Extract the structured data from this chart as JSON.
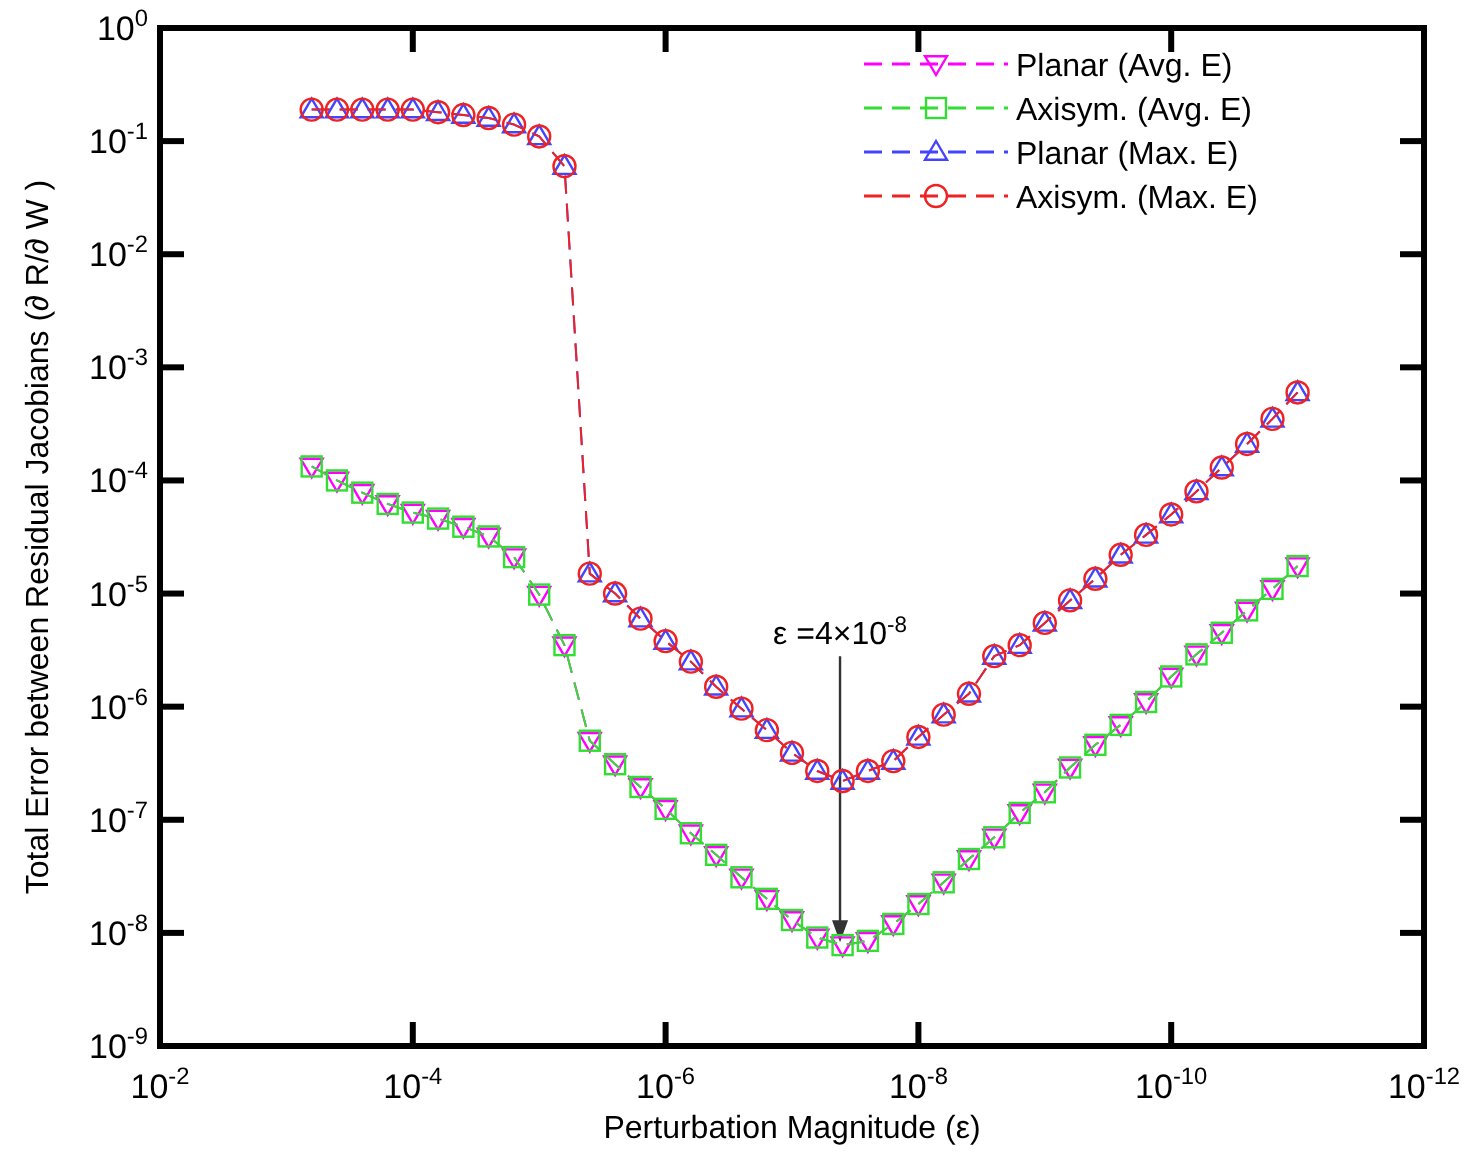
{
  "chart_data": {
    "type": "line",
    "xlabel": "Perturbation Magnitude (ε)",
    "ylabel": "Total Error between Residual Jacobians (∂ R/∂ W )",
    "log": "xy",
    "xlim": [
      0.01,
      1e-12
    ],
    "xticks": [
      {
        "value": 0.01,
        "label": "10$^{-2}$"
      },
      {
        "value": 0.0001,
        "label": "10$^{-4}$"
      },
      {
        "value": 1e-06,
        "label": "10$^{-6}$"
      },
      {
        "value": 1e-08,
        "label": "10$^{-8}$"
      },
      {
        "value": 1e-10,
        "label": "10$^{-10}$"
      },
      {
        "value": 1e-12,
        "label": "10$^{-12}$"
      }
    ],
    "ylim": [
      1e-09,
      1
    ],
    "yticks": [
      {
        "value": 1e-09,
        "label": "10$^{-9}$"
      },
      {
        "value": 1e-08,
        "label": "10$^{-8}$"
      },
      {
        "value": 1e-07,
        "label": "10$^{-7}$"
      },
      {
        "value": 1e-06,
        "label": "10$^{-6}$"
      },
      {
        "value": 1e-05,
        "label": "10$^{-5}$"
      },
      {
        "value": 0.0001,
        "label": "10$^{-4}$"
      },
      {
        "value": 0.001,
        "label": "10$^{-3}$"
      },
      {
        "value": 0.01,
        "label": "10$^{-2}$"
      },
      {
        "value": 0.1,
        "label": "10$^{-1}$"
      },
      {
        "value": 1,
        "label": "10$^{0}$"
      }
    ],
    "x": [
      0.000631,
      0.000398,
      0.000251,
      0.000158,
      0.0001,
      6.31e-05,
      3.98e-05,
      2.51e-05,
      1.58e-05,
      1e-05,
      6.31e-06,
      3.98e-06,
      2.51e-06,
      1.58e-06,
      1e-06,
      6.31e-07,
      3.98e-07,
      2.51e-07,
      1.58e-07,
      1e-07,
      6.31e-08,
      3.98e-08,
      2.51e-08,
      1.58e-08,
      1e-08,
      6.31e-09,
      3.98e-09,
      2.51e-09,
      1.58e-09,
      1e-09,
      6.31e-10,
      3.98e-10,
      2.51e-10,
      1.58e-10,
      1e-10,
      6.31e-11,
      3.98e-11,
      2.51e-11,
      1.58e-11,
      1e-11
    ],
    "legend": "top right",
    "line_style": "dashed",
    "series": [
      {
        "name": "Planar (Avg. E)",
        "color": "#ff00ff",
        "marker": "triangle-down",
        "values": [
          0.000133,
          0.0001,
          7.8e-05,
          6.2e-05,
          5.2e-05,
          4.6e-05,
          3.9e-05,
          3.2e-05,
          2.1e-05,
          9.8e-06,
          3.5e-06,
          5e-07,
          3.1e-07,
          1.95e-07,
          1.25e-07,
          7.6e-08,
          4.9e-08,
          3.1e-08,
          2e-08,
          1.3e-08,
          9.1e-09,
          7.8e-09,
          8.5e-09,
          1.2e-08,
          1.8e-08,
          2.8e-08,
          4.5e-08,
          7e-08,
          1.15e-07,
          1.75e-07,
          2.9e-07,
          4.6e-07,
          6.9e-07,
          1.1e-06,
          1.85e-06,
          2.9e-06,
          4.5e-06,
          7.1e-06,
          1.1e-05,
          1.75e-05
        ]
      },
      {
        "name": "Axisym. (Avg. E)",
        "color": "#33dd33",
        "marker": "square",
        "values": [
          0.000133,
          0.0001,
          7.8e-05,
          6.2e-05,
          5.2e-05,
          4.6e-05,
          3.9e-05,
          3.2e-05,
          2.1e-05,
          9.8e-06,
          3.5e-06,
          5e-07,
          3.1e-07,
          1.95e-07,
          1.25e-07,
          7.6e-08,
          4.9e-08,
          3.1e-08,
          2e-08,
          1.3e-08,
          9.1e-09,
          7.8e-09,
          8.5e-09,
          1.2e-08,
          1.8e-08,
          2.8e-08,
          4.5e-08,
          7e-08,
          1.15e-07,
          1.75e-07,
          2.9e-07,
          4.6e-07,
          6.9e-07,
          1.1e-06,
          1.85e-06,
          2.9e-06,
          4.5e-06,
          7.1e-06,
          1.1e-05,
          1.75e-05
        ]
      },
      {
        "name": "Planar (Max. E)",
        "color": "#4444ff",
        "marker": "triangle",
        "values": [
          0.19,
          0.19,
          0.19,
          0.19,
          0.19,
          0.18,
          0.17,
          0.16,
          0.14,
          0.11,
          0.06,
          1.5e-05,
          1e-05,
          6e-06,
          3.8e-06,
          2.5e-06,
          1.5e-06,
          9.6e-07,
          6.2e-07,
          3.9e-07,
          2.7e-07,
          2.2e-07,
          2.7e-07,
          3.3e-07,
          5.4e-07,
          8.5e-07,
          1.3e-06,
          2.8e-06,
          3.5e-06,
          5.5e-06,
          8.7e-06,
          1.35e-05,
          2.2e-05,
          3.3e-05,
          5e-05,
          8e-05,
          0.00013,
          0.00021,
          0.00035,
          0.0006
        ]
      },
      {
        "name": "Axisym. (Max. E)",
        "color": "#ee2222",
        "marker": "circle",
        "values": [
          0.19,
          0.19,
          0.19,
          0.19,
          0.19,
          0.18,
          0.17,
          0.16,
          0.14,
          0.11,
          0.06,
          1.5e-05,
          1e-05,
          6e-06,
          3.8e-06,
          2.5e-06,
          1.5e-06,
          9.6e-07,
          6.2e-07,
          3.9e-07,
          2.7e-07,
          2.2e-07,
          2.7e-07,
          3.3e-07,
          5.4e-07,
          8.5e-07,
          1.3e-06,
          2.8e-06,
          3.5e-06,
          5.5e-06,
          8.7e-06,
          1.35e-05,
          2.2e-05,
          3.3e-05,
          5e-05,
          8e-05,
          0.00013,
          0.00021,
          0.00035,
          0.0006
        ]
      }
    ],
    "annotations": [
      "ε =4×10$^{-8}$"
    ]
  }
}
